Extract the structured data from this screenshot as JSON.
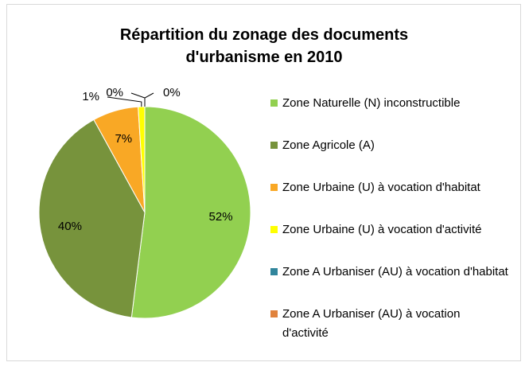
{
  "chart_data": {
    "type": "pie",
    "title": "Répartition du zonage des documents d'urbanisme en 2010",
    "categories": [
      "Zone Naturelle (N) inconstructible",
      "Zone Agricole (A)",
      "Zone Urbaine (U) à vocation d'habitat",
      "Zone Urbaine (U) à vocation d'activité",
      "Zone A Urbaniser (AU) à vocation d'habitat",
      "Zone A Urbaniser (AU) à vocation d'activité"
    ],
    "values": [
      52,
      40,
      7,
      1,
      0,
      0
    ],
    "value_labels": [
      "52%",
      "40%",
      "7%",
      "1%",
      "0%",
      "0%"
    ],
    "colors": [
      "#92d050",
      "#77933c",
      "#f9a825",
      "#ffff00",
      "#31859c",
      "#e0823c"
    ],
    "legend": "right"
  }
}
